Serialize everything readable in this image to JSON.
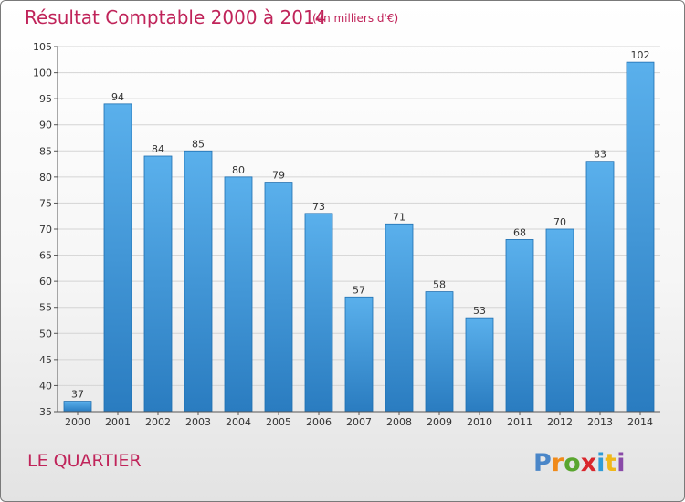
{
  "title": "Résultat Comptable 2000 à 2014",
  "subtitle": "(en milliers d'€)",
  "commune": "LE QUARTIER",
  "logo_text": "Proxiti",
  "colors": {
    "title": "#c0245a",
    "bar_top": "#5ab0ec",
    "bar_bottom": "#2a7cc0",
    "bar_edge": "#1f6fb0"
  },
  "chart_data": {
    "type": "bar",
    "categories": [
      "2000",
      "2001",
      "2002",
      "2003",
      "2004",
      "2005",
      "2006",
      "2007",
      "2008",
      "2009",
      "2010",
      "2011",
      "2012",
      "2013",
      "2014"
    ],
    "values": [
      37,
      94,
      84,
      85,
      80,
      79,
      73,
      57,
      71,
      58,
      53,
      68,
      70,
      83,
      102
    ],
    "ylim": [
      35,
      105
    ],
    "yticks": [
      35,
      40,
      45,
      50,
      55,
      60,
      65,
      70,
      75,
      80,
      85,
      90,
      95,
      100,
      105
    ],
    "grid": true,
    "data_labels": true
  }
}
